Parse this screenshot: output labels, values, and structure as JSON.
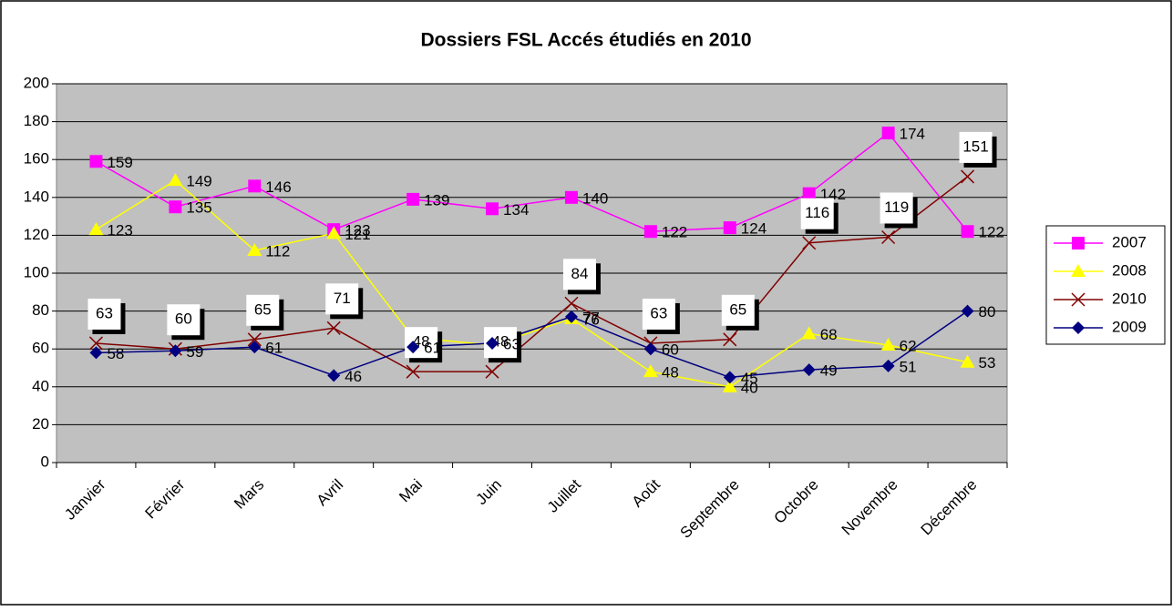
{
  "chart_data": {
    "type": "line",
    "title": "Dossiers FSL Accés étudiés en 2010",
    "categories": [
      "Janvier",
      "Février",
      "Mars",
      "Avril",
      "Mai",
      "Juin",
      "Juillet",
      "Août",
      "Septembre",
      "Octobre",
      "Novembre",
      "Décembre"
    ],
    "series": [
      {
        "name": "2007",
        "color": "#FF00FF",
        "marker": "square",
        "values": [
          159,
          135,
          146,
          123,
          139,
          134,
          140,
          122,
          124,
          142,
          174,
          122
        ]
      },
      {
        "name": "2008",
        "color": "#FFFF00",
        "marker": "triangle",
        "values": [
          123,
          149,
          112,
          121,
          66,
          62,
          76,
          48,
          40,
          68,
          62,
          53
        ]
      },
      {
        "name": "2010",
        "color": "#800000",
        "marker": "x",
        "boxed_labels": true,
        "values": [
          63,
          60,
          65,
          71,
          48,
          48,
          84,
          63,
          65,
          116,
          119,
          151
        ]
      },
      {
        "name": "2009",
        "color": "#000080",
        "marker": "diamond",
        "values": [
          58,
          59,
          61,
          46,
          61,
          63,
          77,
          60,
          45,
          49,
          51,
          80
        ]
      }
    ],
    "ylim": [
      0,
      200
    ],
    "yticks": [
      0,
      20,
      40,
      60,
      80,
      100,
      120,
      140,
      160,
      180,
      200
    ],
    "grid": true,
    "legend": "right"
  }
}
